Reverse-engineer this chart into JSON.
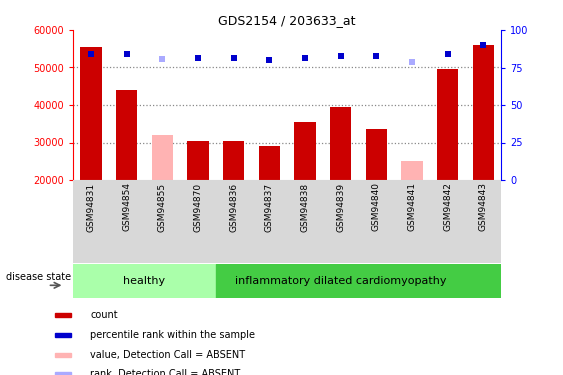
{
  "title": "GDS2154 / 203633_at",
  "samples": [
    "GSM94831",
    "GSM94854",
    "GSM94855",
    "GSM94870",
    "GSM94836",
    "GSM94837",
    "GSM94838",
    "GSM94839",
    "GSM94840",
    "GSM94841",
    "GSM94842",
    "GSM94843"
  ],
  "counts": [
    55500,
    44000,
    null,
    30500,
    30500,
    29000,
    35500,
    39500,
    33500,
    null,
    49500,
    56000
  ],
  "absent_counts": [
    null,
    null,
    32000,
    null,
    null,
    null,
    null,
    null,
    null,
    25000,
    null,
    null
  ],
  "ranks_pct": [
    84.0,
    84.0,
    null,
    81.5,
    81.5,
    80.0,
    81.5,
    82.5,
    82.5,
    null,
    84.0,
    90.0
  ],
  "absent_ranks_pct": [
    null,
    null,
    81.0,
    null,
    null,
    null,
    null,
    null,
    null,
    79.0,
    null,
    null
  ],
  "ylim_left": [
    20000,
    60000
  ],
  "ylim_right": [
    0,
    100
  ],
  "yticks_left": [
    20000,
    30000,
    40000,
    50000,
    60000
  ],
  "yticks_right": [
    0,
    25,
    50,
    75,
    100
  ],
  "bar_color": "#cc0000",
  "absent_bar_color": "#ffb3b3",
  "rank_color": "#0000cc",
  "absent_rank_color": "#aaaaff",
  "healthy_color": "#aaffaa",
  "idcm_color": "#44cc44",
  "xtick_bg_color": "#d8d8d8",
  "dotted_line_color": "#888888",
  "disease_state_label": "disease state",
  "healthy_label": "healthy",
  "idcm_label": "inflammatory dilated cardiomyopathy",
  "legend_items": [
    {
      "color": "#cc0000",
      "label": "count"
    },
    {
      "color": "#0000cc",
      "label": "percentile rank within the sample"
    },
    {
      "color": "#ffb3b3",
      "label": "value, Detection Call = ABSENT"
    },
    {
      "color": "#aaaaff",
      "label": "rank, Detection Call = ABSENT"
    }
  ]
}
